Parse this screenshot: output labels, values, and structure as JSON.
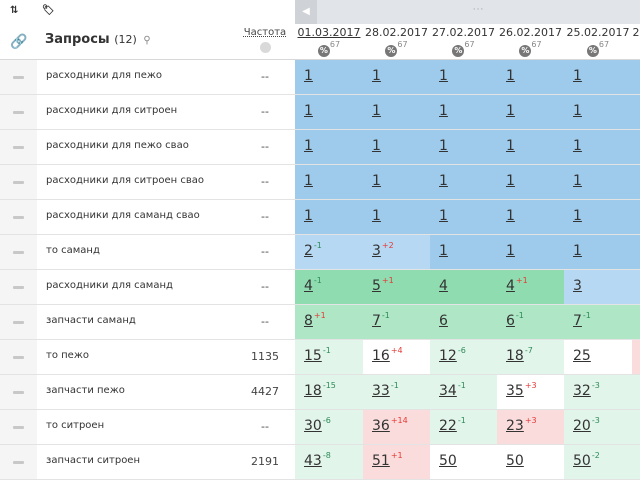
{
  "toolbar": {
    "sort_icon": "⇅",
    "tag_icon": "🏷"
  },
  "scroll": {
    "left_arrow": "◀",
    "thumb_grip": "···"
  },
  "header": {
    "queries_label": "Запросы",
    "queries_count": "(12)",
    "frequency_label": "Частота"
  },
  "dates": [
    {
      "date": "01.03.2017",
      "pct": "67",
      "active": true
    },
    {
      "date": "28.02.2017",
      "pct": "67"
    },
    {
      "date": "27.02.2017",
      "pct": "67"
    },
    {
      "date": "26.02.2017",
      "pct": "67"
    },
    {
      "date": "25.02.2017",
      "pct": "67"
    },
    {
      "date": "2",
      "pct": ""
    }
  ],
  "colors": {
    "top_blue": "#9ecbec",
    "light_blue": "#b6d8f2",
    "green_strong": "#8fdcb0",
    "green_mid": "#aee6c6",
    "green_light": "#e2f5ea",
    "red_light": "#fbdcdc",
    "white": "#ffffff"
  },
  "rows": [
    {
      "query": "расходники для пежо",
      "freq": "--",
      "positions": [
        {
          "v": "1",
          "c": "top_blue"
        },
        {
          "v": "1",
          "c": "top_blue"
        },
        {
          "v": "1",
          "c": "top_blue"
        },
        {
          "v": "1",
          "c": "top_blue"
        },
        {
          "v": "1",
          "c": "top_blue"
        },
        {
          "v": "",
          "c": "top_blue"
        }
      ]
    },
    {
      "query": "расходники для ситроен",
      "freq": "--",
      "positions": [
        {
          "v": "1",
          "c": "top_blue"
        },
        {
          "v": "1",
          "c": "top_blue"
        },
        {
          "v": "1",
          "c": "top_blue"
        },
        {
          "v": "1",
          "c": "top_blue"
        },
        {
          "v": "1",
          "c": "top_blue"
        },
        {
          "v": "",
          "c": "top_blue"
        }
      ]
    },
    {
      "query": "расходники для пежо свао",
      "freq": "--",
      "positions": [
        {
          "v": "1",
          "c": "top_blue"
        },
        {
          "v": "1",
          "c": "top_blue"
        },
        {
          "v": "1",
          "c": "top_blue"
        },
        {
          "v": "1",
          "c": "top_blue"
        },
        {
          "v": "1",
          "c": "top_blue"
        },
        {
          "v": "",
          "c": "top_blue"
        }
      ]
    },
    {
      "query": "расходники для ситроен свао",
      "freq": "--",
      "positions": [
        {
          "v": "1",
          "c": "top_blue"
        },
        {
          "v": "1",
          "c": "top_blue"
        },
        {
          "v": "1",
          "c": "top_blue"
        },
        {
          "v": "1",
          "c": "top_blue"
        },
        {
          "v": "1",
          "c": "top_blue"
        },
        {
          "v": "",
          "c": "top_blue"
        }
      ]
    },
    {
      "query": "расходники для саманд свао",
      "freq": "--",
      "positions": [
        {
          "v": "1",
          "c": "top_blue"
        },
        {
          "v": "1",
          "c": "top_blue"
        },
        {
          "v": "1",
          "c": "top_blue"
        },
        {
          "v": "1",
          "c": "top_blue"
        },
        {
          "v": "1",
          "c": "top_blue"
        },
        {
          "v": "",
          "c": "top_blue"
        }
      ]
    },
    {
      "query": "то саманд",
      "freq": "--",
      "positions": [
        {
          "v": "2",
          "d": "-1",
          "dir": "up",
          "c": "light_blue"
        },
        {
          "v": "3",
          "d": "+2",
          "dir": "down",
          "c": "light_blue"
        },
        {
          "v": "1",
          "c": "top_blue"
        },
        {
          "v": "1",
          "c": "top_blue"
        },
        {
          "v": "1",
          "c": "top_blue"
        },
        {
          "v": "",
          "c": "top_blue"
        }
      ]
    },
    {
      "query": "расходники для саманд",
      "freq": "--",
      "positions": [
        {
          "v": "4",
          "d": "-1",
          "dir": "up",
          "c": "green_strong"
        },
        {
          "v": "5",
          "d": "+1",
          "dir": "down",
          "c": "green_strong"
        },
        {
          "v": "4",
          "c": "green_strong"
        },
        {
          "v": "4",
          "d": "+1",
          "dir": "down",
          "c": "green_strong"
        },
        {
          "v": "3",
          "c": "light_blue"
        },
        {
          "v": "",
          "c": "light_blue"
        }
      ]
    },
    {
      "query": "запчасти саманд",
      "freq": "--",
      "positions": [
        {
          "v": "8",
          "d": "+1",
          "dir": "down",
          "c": "green_mid"
        },
        {
          "v": "7",
          "d": "-1",
          "dir": "up",
          "c": "green_mid"
        },
        {
          "v": "6",
          "c": "green_mid"
        },
        {
          "v": "6",
          "d": "-1",
          "dir": "up",
          "c": "green_mid"
        },
        {
          "v": "7",
          "d": "-1",
          "dir": "up",
          "c": "green_mid"
        },
        {
          "v": "",
          "c": "green_mid"
        }
      ]
    },
    {
      "query": "то пежо",
      "freq": "1135",
      "positions": [
        {
          "v": "15",
          "d": "-1",
          "dir": "up",
          "c": "green_light"
        },
        {
          "v": "16",
          "d": "+4",
          "dir": "down",
          "c": "white"
        },
        {
          "v": "12",
          "d": "-6",
          "dir": "up",
          "c": "green_light"
        },
        {
          "v": "18",
          "d": "-7",
          "dir": "up",
          "c": "green_light"
        },
        {
          "v": "25",
          "c": "white"
        },
        {
          "v": "",
          "c": "red_light"
        }
      ]
    },
    {
      "query": "запчасти пежо",
      "freq": "4427",
      "positions": [
        {
          "v": "18",
          "d": "-15",
          "dir": "up",
          "c": "green_light"
        },
        {
          "v": "33",
          "d": "-1",
          "dir": "up",
          "c": "green_light"
        },
        {
          "v": "34",
          "d": "-1",
          "dir": "up",
          "c": "green_light"
        },
        {
          "v": "35",
          "d": "+3",
          "dir": "down",
          "c": "white"
        },
        {
          "v": "32",
          "d": "-3",
          "dir": "up",
          "c": "green_light"
        },
        {
          "v": "",
          "c": "green_light"
        }
      ]
    },
    {
      "query": "то ситроен",
      "freq": "--",
      "positions": [
        {
          "v": "30",
          "d": "-6",
          "dir": "up",
          "c": "green_light"
        },
        {
          "v": "36",
          "d": "+14",
          "dir": "down",
          "c": "red_light"
        },
        {
          "v": "22",
          "d": "-1",
          "dir": "up",
          "c": "green_light"
        },
        {
          "v": "23",
          "d": "+3",
          "dir": "down",
          "c": "red_light"
        },
        {
          "v": "20",
          "d": "-3",
          "dir": "up",
          "c": "green_light"
        },
        {
          "v": "",
          "c": "green_light"
        }
      ]
    },
    {
      "query": "запчасти ситроен",
      "freq": "2191",
      "positions": [
        {
          "v": "43",
          "d": "-8",
          "dir": "up",
          "c": "green_light"
        },
        {
          "v": "51",
          "d": "+1",
          "dir": "down",
          "c": "red_light"
        },
        {
          "v": "50",
          "c": "white"
        },
        {
          "v": "50",
          "c": "white"
        },
        {
          "v": "50",
          "d": "-2",
          "dir": "up",
          "c": "green_light"
        },
        {
          "v": "",
          "c": "green_light"
        }
      ]
    }
  ]
}
